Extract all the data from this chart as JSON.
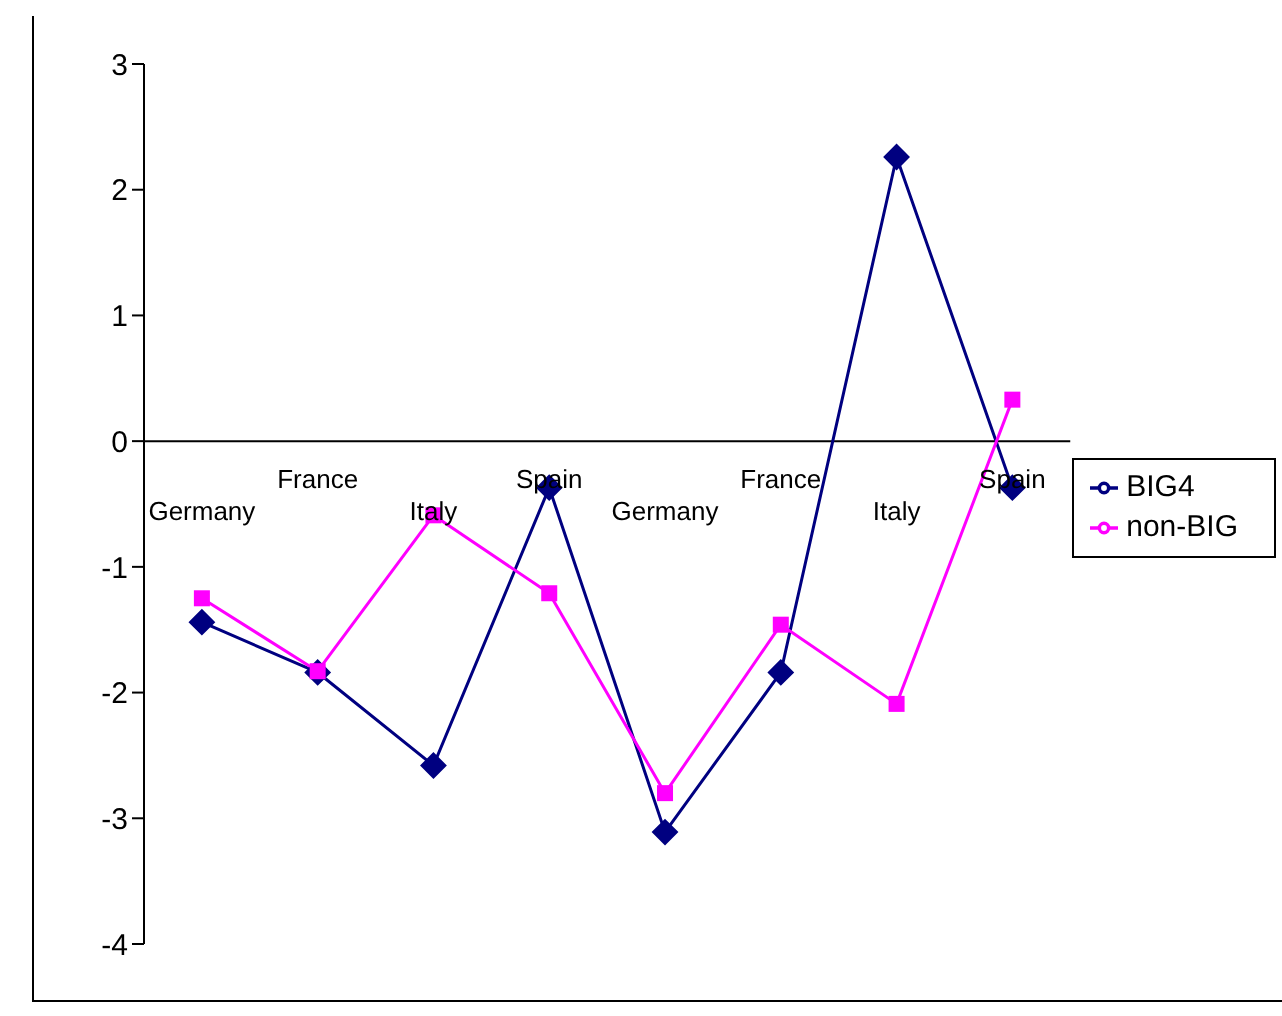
{
  "chart_data": {
    "type": "line",
    "categories": [
      "Germany",
      "France",
      "Italy",
      "Spain",
      "Germany",
      "France",
      "Italy",
      "Spain"
    ],
    "series": [
      {
        "name": "BIG4",
        "color": "#000080",
        "marker": "diamond",
        "values": [
          -1.44,
          -1.84,
          -2.58,
          -0.37,
          -3.11,
          -1.84,
          2.26,
          -0.37
        ]
      },
      {
        "name": "non-BIG",
        "color": "#ff00ff",
        "marker": "square",
        "values": [
          -1.25,
          -1.83,
          -0.59,
          -1.21,
          -2.8,
          -1.46,
          -2.09,
          0.33
        ]
      }
    ],
    "ylim": [
      -4,
      3
    ],
    "yticks": [
      -4,
      -3,
      -2,
      -1,
      0,
      1,
      2,
      3
    ],
    "grid": false,
    "legend": "right",
    "line_style": "solid"
  }
}
